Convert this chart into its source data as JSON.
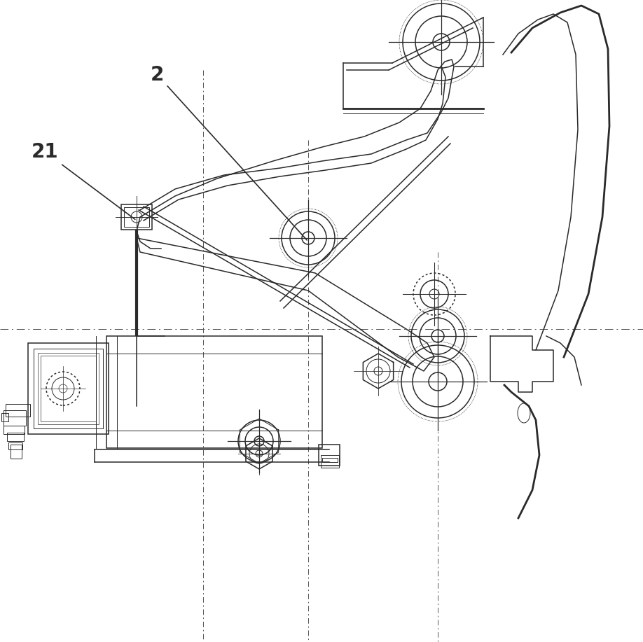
{
  "bg_color": "#ffffff",
  "line_color": "#2a2a2a",
  "label_2": "2",
  "label_21": "21",
  "label_fontsize": 20,
  "lw_thin": 0.7,
  "lw_med": 1.1,
  "lw_thick": 2.0,
  "lw_xthick": 3.0,
  "centerline_color": "#555555",
  "centerline_lw": 0.7
}
